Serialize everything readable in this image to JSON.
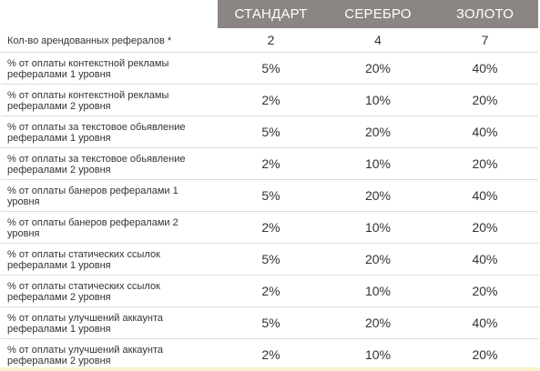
{
  "table": {
    "headers": [
      "СТАНДАРТ",
      "СЕРЕБРО",
      "ЗОЛОТО"
    ],
    "rows": [
      {
        "feature": "Кол-во арендованных рефералов *",
        "values": [
          "2",
          "4",
          "7"
        ]
      },
      {
        "feature": "% от оплаты контекстной рекламы рефералами 1 уровня",
        "values": [
          "5%",
          "20%",
          "40%"
        ]
      },
      {
        "feature": "% от оплаты контекстной рекламы рефералами 2 уровня",
        "values": [
          "2%",
          "10%",
          "20%"
        ]
      },
      {
        "feature": "% от оплаты за текстовое обьявление рефералами 1 уровня",
        "values": [
          "5%",
          "20%",
          "40%"
        ]
      },
      {
        "feature": "% от оплаты за текстовое обьявление рефералами 2 уровня",
        "values": [
          "2%",
          "10%",
          "20%"
        ]
      },
      {
        "feature": "% от оплаты банеров рефералами 1 уровня",
        "values": [
          "5%",
          "20%",
          "40%"
        ]
      },
      {
        "feature": "% от оплаты банеров рефералами 2 уровня",
        "values": [
          "2%",
          "10%",
          "20%"
        ]
      },
      {
        "feature": "% от оплаты статических ссылок рефералами 1 уровня",
        "values": [
          "5%",
          "20%",
          "40%"
        ]
      },
      {
        "feature": "% от оплаты статических ссылок рефералами 2 уровня",
        "values": [
          "2%",
          "10%",
          "20%"
        ]
      },
      {
        "feature": "% от оплаты улучшений аккаунта рефералами 1 уровня",
        "values": [
          "5%",
          "20%",
          "40%"
        ]
      },
      {
        "feature": "% от оплаты улучшений аккаунта рефералами 2 уровня",
        "values": [
          "2%",
          "10%",
          "20%"
        ]
      }
    ]
  },
  "colors": {
    "header_bg": "#8b8684",
    "header_text": "#ffffff",
    "row_border": "#dcdcdc",
    "bottom_accent": "#f7f3cf"
  }
}
